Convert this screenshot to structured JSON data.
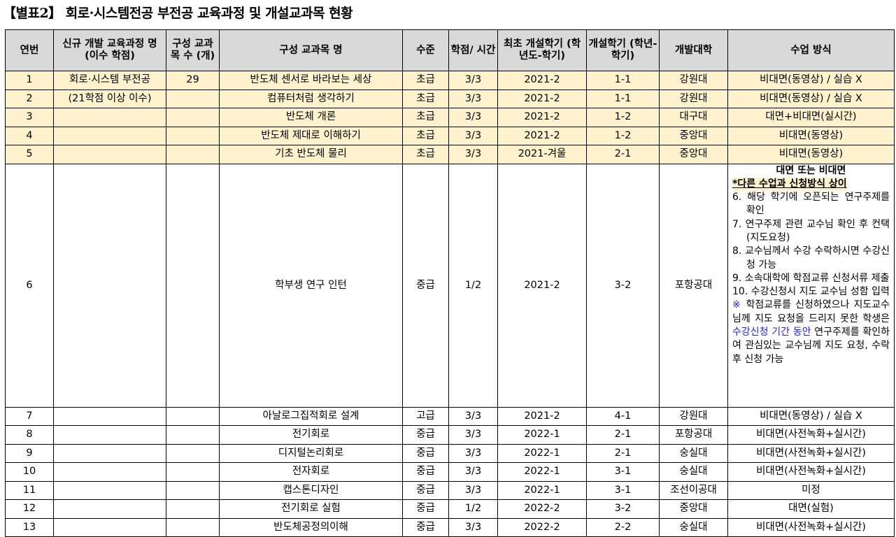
{
  "title": "【별표2】 회로·시스템전공 부전공 교육과정 및 개설교과목 현황",
  "headers": [
    "연번",
    "신규 개발 교육과정 명 (이수 학점)",
    "구성 교과목 수 (개)",
    "구성 교과목 명",
    "수준",
    "학점/ 시간",
    "최초 개설학기 (학년도-학기)",
    "개설학기 (학년-학기)",
    "개발대학",
    "수업 방식"
  ],
  "rows": [
    {
      "no": "1",
      "program": "회로·시스템 부전공",
      "count": "29",
      "course": "반도체 센서로 바라보는 세상",
      "level": "초급",
      "credit": "3/3",
      "first": "2021-2",
      "term": "1-1",
      "univ": "강원대",
      "method": "비대면(동영상) / 실습 X"
    },
    {
      "no": "2",
      "program": "(21학점 이상 이수)",
      "count": "",
      "course": "컴퓨터처럼 생각하기",
      "level": "초급",
      "credit": "3/3",
      "first": "2021-2",
      "term": "1-1",
      "univ": "강원대",
      "method": "비대면(동영상) / 실습 X"
    },
    {
      "no": "3",
      "program": "",
      "count": "",
      "course": "반도체 개론",
      "level": "초급",
      "credit": "3/3",
      "first": "2021-2",
      "term": "1-2",
      "univ": "대구대",
      "method": "대면+비대면(실시간)"
    },
    {
      "no": "4",
      "program": "",
      "count": "",
      "course": "반도체 제대로 이해하기",
      "level": "초급",
      "credit": "3/3",
      "first": "2021-2",
      "term": "1-2",
      "univ": "중앙대",
      "method": "비대면(동영상)"
    },
    {
      "no": "5",
      "program": "",
      "count": "",
      "course": "기초 반도체 물리",
      "level": "초급",
      "credit": "3/3",
      "first": "2021-겨울",
      "term": "2-1",
      "univ": "중앙대",
      "method": "비대면(동영상)"
    }
  ],
  "row6": {
    "no": "6",
    "course": "학부생 연구 인턴",
    "level": "중급",
    "credit": "1/2",
    "first": "2021-2",
    "term": "3-2",
    "univ": "포항공대",
    "method_title": "대면 또는 비대면",
    "method_note": "*다른 수업과 신청방식 상이",
    "steps": [
      "6. 해당 학기에 오픈되는 연구주제를 확인",
      "7. 연구주제 관련 교수님 확인 후 컨택(지도요청)",
      "8. 교수님께서 수강 수락하시면 수강신청 가능",
      "9. 소속대학에 학점교류 신청서류 제출",
      "10. 수강신청시 지도 교수님 성함 입력"
    ],
    "notice_mark": "※",
    "notice_a": "학점교류를 신청하였으나 지도교수님께 지도 요청을 드리지 못한 학생은",
    "notice_highlight": "수강신청 기간 동안",
    "notice_b": "연구주제를 확인하여 관심있는 교수님께 지도 요청, 수락 후 신청 가능"
  },
  "rows2": [
    {
      "no": "7",
      "course": "아날로그집적회로 설계",
      "level": "고급",
      "credit": "3/3",
      "first": "2021-2",
      "term": "4-1",
      "univ": "강원대",
      "method": "비대면(동영상) / 실습 X"
    },
    {
      "no": "8",
      "course": "전기회로",
      "level": "중급",
      "credit": "3/3",
      "first": "2022-1",
      "term": "2-1",
      "univ": "포항공대",
      "method": "비대면(사전녹화+실시간)"
    },
    {
      "no": "9",
      "course": "디지털논리회로",
      "level": "중급",
      "credit": "3/3",
      "first": "2022-1",
      "term": "2-1",
      "univ": "숭실대",
      "method": "비대면(사전녹화+실시간)"
    },
    {
      "no": "10",
      "course": "전자회로",
      "level": "중급",
      "credit": "3/3",
      "first": "2022-1",
      "term": "3-1",
      "univ": "숭실대",
      "method": "비대면(사전녹화+실시간)"
    },
    {
      "no": "11",
      "course": "캡스톤디자인",
      "level": "중급",
      "credit": "3/3",
      "first": "2022-1",
      "term": "3-1",
      "univ": "조선이공대",
      "method": "미정"
    },
    {
      "no": "12",
      "course": "전기회로 실험",
      "level": "중급",
      "credit": "1/2",
      "first": "2022-2",
      "term": "3-2",
      "univ": "중앙대",
      "method": "대면(실험)"
    },
    {
      "no": "13",
      "course": "반도체공정의이해",
      "level": "중급",
      "credit": "3/3",
      "first": "2022-2",
      "term": "2-2",
      "univ": "숭실대",
      "method": "비대면(사전녹화+실시간)"
    }
  ],
  "colors": {
    "header_bg": "#d9d9d9",
    "highlight_bg": "#fff2cc",
    "notice_blue": "#1f1fff"
  }
}
